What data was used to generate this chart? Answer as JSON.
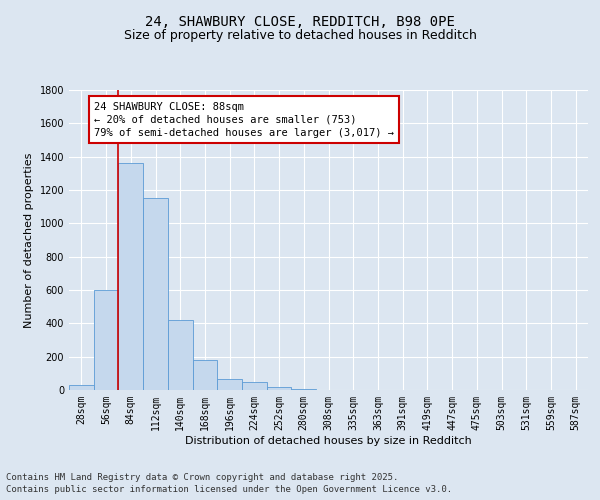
{
  "title": "24, SHAWBURY CLOSE, REDDITCH, B98 0PE",
  "subtitle": "Size of property relative to detached houses in Redditch",
  "xlabel": "Distribution of detached houses by size in Redditch",
  "ylabel": "Number of detached properties",
  "categories": [
    "28sqm",
    "56sqm",
    "84sqm",
    "112sqm",
    "140sqm",
    "168sqm",
    "196sqm",
    "224sqm",
    "252sqm",
    "280sqm",
    "308sqm",
    "335sqm",
    "363sqm",
    "391sqm",
    "419sqm",
    "447sqm",
    "475sqm",
    "503sqm",
    "531sqm",
    "559sqm",
    "587sqm"
  ],
  "values": [
    30,
    600,
    1360,
    1150,
    420,
    180,
    65,
    50,
    18,
    5,
    0,
    0,
    0,
    0,
    0,
    0,
    0,
    0,
    0,
    0,
    0
  ],
  "bar_color": "#c5d8ed",
  "bar_edge_color": "#5b9bd5",
  "vline_x_index": 2,
  "vline_color": "#cc0000",
  "ylim": [
    0,
    1800
  ],
  "yticks": [
    0,
    200,
    400,
    600,
    800,
    1000,
    1200,
    1400,
    1600,
    1800
  ],
  "annotation_line1": "24 SHAWBURY CLOSE: 88sqm",
  "annotation_line2": "← 20% of detached houses are smaller (753)",
  "annotation_line3": "79% of semi-detached houses are larger (3,017) →",
  "annotation_box_color": "#ffffff",
  "annotation_box_edge": "#cc0000",
  "background_color": "#dce6f1",
  "plot_bg_color": "#dce6f1",
  "footer_line1": "Contains HM Land Registry data © Crown copyright and database right 2025.",
  "footer_line2": "Contains public sector information licensed under the Open Government Licence v3.0.",
  "title_fontsize": 10,
  "subtitle_fontsize": 9,
  "axis_label_fontsize": 8,
  "tick_fontsize": 7,
  "annotation_fontsize": 7.5,
  "footer_fontsize": 6.5
}
